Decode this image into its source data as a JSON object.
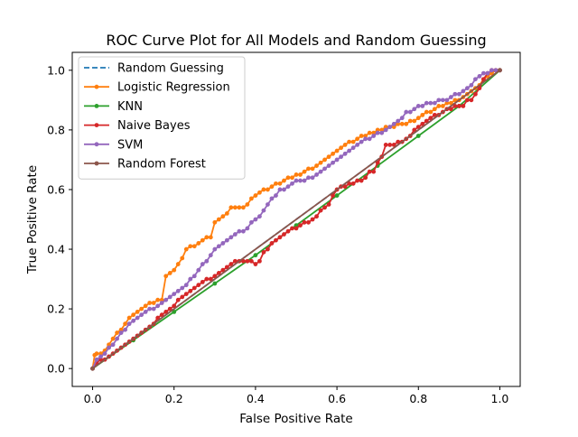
{
  "chart_data": {
    "type": "line",
    "title": "ROC Curve Plot for All Models and Random Guessing",
    "xlabel": "False Positive Rate",
    "ylabel": "True Positive Rate",
    "xlim": [
      -0.05,
      1.05
    ],
    "ylim": [
      -0.06,
      1.06
    ],
    "xticks": [
      "0.0",
      "0.2",
      "0.4",
      "0.6",
      "0.8",
      "1.0"
    ],
    "yticks": [
      "0.0",
      "0.2",
      "0.4",
      "0.6",
      "0.8",
      "1.0"
    ],
    "grid": false,
    "legend_position": "top-left",
    "series": [
      {
        "name": "Random Guessing",
        "color": "#1f77b4",
        "style": "dashed",
        "markers": false,
        "x": [
          0,
          1
        ],
        "y": [
          0,
          1
        ]
      },
      {
        "name": "Logistic Regression",
        "color": "#ff7f0e",
        "style": "solid",
        "markers": true,
        "x": [
          0.0,
          0.005,
          0.01,
          0.02,
          0.03,
          0.04,
          0.05,
          0.06,
          0.07,
          0.08,
          0.09,
          0.1,
          0.11,
          0.12,
          0.13,
          0.14,
          0.15,
          0.16,
          0.17,
          0.18,
          0.19,
          0.2,
          0.21,
          0.22,
          0.23,
          0.24,
          0.25,
          0.26,
          0.27,
          0.28,
          0.29,
          0.3,
          0.31,
          0.32,
          0.33,
          0.34,
          0.35,
          0.36,
          0.37,
          0.38,
          0.39,
          0.4,
          0.41,
          0.42,
          0.43,
          0.44,
          0.45,
          0.46,
          0.47,
          0.48,
          0.49,
          0.5,
          0.51,
          0.52,
          0.53,
          0.54,
          0.55,
          0.56,
          0.57,
          0.58,
          0.59,
          0.6,
          0.61,
          0.62,
          0.63,
          0.64,
          0.65,
          0.66,
          0.67,
          0.68,
          0.69,
          0.7,
          0.71,
          0.72,
          0.73,
          0.74,
          0.75,
          0.76,
          0.77,
          0.78,
          0.79,
          0.8,
          0.81,
          0.82,
          0.83,
          0.84,
          0.85,
          0.86,
          0.87,
          0.88,
          0.89,
          0.9,
          0.91,
          0.92,
          0.93,
          0.94,
          0.95,
          0.96,
          0.97,
          0.98,
          0.99,
          1.0
        ],
        "y": [
          0.0,
          0.045,
          0.05,
          0.05,
          0.06,
          0.08,
          0.1,
          0.12,
          0.13,
          0.15,
          0.17,
          0.18,
          0.19,
          0.2,
          0.21,
          0.22,
          0.22,
          0.23,
          0.23,
          0.31,
          0.32,
          0.33,
          0.35,
          0.37,
          0.4,
          0.41,
          0.41,
          0.42,
          0.43,
          0.44,
          0.44,
          0.49,
          0.5,
          0.51,
          0.52,
          0.54,
          0.54,
          0.54,
          0.54,
          0.55,
          0.57,
          0.58,
          0.59,
          0.6,
          0.6,
          0.61,
          0.62,
          0.62,
          0.63,
          0.64,
          0.64,
          0.65,
          0.65,
          0.66,
          0.67,
          0.67,
          0.68,
          0.69,
          0.7,
          0.71,
          0.72,
          0.73,
          0.74,
          0.75,
          0.76,
          0.76,
          0.77,
          0.78,
          0.78,
          0.79,
          0.79,
          0.8,
          0.8,
          0.81,
          0.81,
          0.81,
          0.82,
          0.82,
          0.82,
          0.83,
          0.83,
          0.84,
          0.85,
          0.86,
          0.86,
          0.87,
          0.88,
          0.88,
          0.89,
          0.89,
          0.9,
          0.9,
          0.91,
          0.92,
          0.93,
          0.94,
          0.95,
          0.97,
          0.98,
          0.99,
          1.0,
          1.0
        ]
      },
      {
        "name": "KNN",
        "color": "#2ca02c",
        "style": "solid",
        "markers": true,
        "x": [
          0.0,
          0.1,
          0.2,
          0.3,
          0.4,
          0.5,
          0.6,
          0.7,
          0.8,
          0.9,
          1.0
        ],
        "y": [
          0.0,
          0.095,
          0.19,
          0.285,
          0.38,
          0.48,
          0.58,
          0.68,
          0.78,
          0.88,
          1.0
        ]
      },
      {
        "name": "Naive Bayes",
        "color": "#d62728",
        "style": "solid",
        "markers": true,
        "x": [
          0.0,
          0.01,
          0.02,
          0.03,
          0.04,
          0.05,
          0.06,
          0.07,
          0.08,
          0.09,
          0.1,
          0.11,
          0.12,
          0.13,
          0.14,
          0.15,
          0.16,
          0.17,
          0.18,
          0.19,
          0.2,
          0.21,
          0.22,
          0.23,
          0.24,
          0.25,
          0.26,
          0.27,
          0.28,
          0.29,
          0.3,
          0.31,
          0.32,
          0.33,
          0.34,
          0.35,
          0.36,
          0.37,
          0.38,
          0.39,
          0.4,
          0.41,
          0.42,
          0.43,
          0.44,
          0.45,
          0.46,
          0.47,
          0.48,
          0.49,
          0.5,
          0.51,
          0.52,
          0.53,
          0.54,
          0.55,
          0.56,
          0.57,
          0.58,
          0.59,
          0.6,
          0.61,
          0.62,
          0.63,
          0.64,
          0.65,
          0.66,
          0.67,
          0.68,
          0.69,
          0.7,
          0.71,
          0.72,
          0.73,
          0.74,
          0.75,
          0.76,
          0.77,
          0.78,
          0.79,
          0.8,
          0.81,
          0.82,
          0.83,
          0.84,
          0.85,
          0.86,
          0.87,
          0.88,
          0.89,
          0.9,
          0.91,
          0.92,
          0.93,
          0.94,
          0.95,
          0.96,
          0.97,
          0.98,
          0.99,
          1.0
        ],
        "y": [
          0.0,
          0.02,
          0.03,
          0.03,
          0.04,
          0.05,
          0.06,
          0.07,
          0.08,
          0.09,
          0.1,
          0.11,
          0.12,
          0.13,
          0.14,
          0.15,
          0.17,
          0.18,
          0.19,
          0.2,
          0.21,
          0.23,
          0.24,
          0.25,
          0.26,
          0.27,
          0.28,
          0.29,
          0.3,
          0.3,
          0.31,
          0.32,
          0.33,
          0.34,
          0.35,
          0.36,
          0.36,
          0.36,
          0.36,
          0.36,
          0.35,
          0.36,
          0.39,
          0.4,
          0.42,
          0.43,
          0.44,
          0.45,
          0.46,
          0.47,
          0.47,
          0.48,
          0.49,
          0.49,
          0.5,
          0.51,
          0.53,
          0.54,
          0.55,
          0.58,
          0.6,
          0.61,
          0.61,
          0.62,
          0.62,
          0.63,
          0.63,
          0.64,
          0.66,
          0.66,
          0.69,
          0.71,
          0.75,
          0.75,
          0.75,
          0.76,
          0.76,
          0.77,
          0.78,
          0.8,
          0.81,
          0.82,
          0.83,
          0.84,
          0.85,
          0.85,
          0.86,
          0.87,
          0.87,
          0.88,
          0.88,
          0.88,
          0.9,
          0.9,
          0.92,
          0.94,
          0.97,
          0.99,
          1.0,
          1.0,
          1.0
        ]
      },
      {
        "name": "SVM",
        "color": "#9467bd",
        "style": "solid",
        "markers": true,
        "x": [
          0.0,
          0.01,
          0.02,
          0.03,
          0.04,
          0.05,
          0.06,
          0.07,
          0.08,
          0.09,
          0.1,
          0.11,
          0.12,
          0.13,
          0.14,
          0.15,
          0.16,
          0.17,
          0.18,
          0.19,
          0.2,
          0.21,
          0.22,
          0.23,
          0.24,
          0.25,
          0.26,
          0.27,
          0.28,
          0.29,
          0.3,
          0.31,
          0.32,
          0.33,
          0.34,
          0.35,
          0.36,
          0.37,
          0.38,
          0.39,
          0.4,
          0.41,
          0.42,
          0.43,
          0.44,
          0.45,
          0.46,
          0.47,
          0.48,
          0.49,
          0.5,
          0.51,
          0.52,
          0.53,
          0.54,
          0.55,
          0.56,
          0.57,
          0.58,
          0.59,
          0.6,
          0.61,
          0.62,
          0.63,
          0.64,
          0.65,
          0.66,
          0.67,
          0.68,
          0.69,
          0.7,
          0.71,
          0.72,
          0.73,
          0.74,
          0.75,
          0.76,
          0.77,
          0.78,
          0.79,
          0.8,
          0.81,
          0.82,
          0.83,
          0.84,
          0.85,
          0.86,
          0.87,
          0.88,
          0.89,
          0.9,
          0.91,
          0.92,
          0.93,
          0.94,
          0.95,
          0.96,
          0.97,
          0.98,
          0.99,
          1.0
        ],
        "y": [
          0.0,
          0.03,
          0.04,
          0.05,
          0.07,
          0.08,
          0.1,
          0.12,
          0.13,
          0.15,
          0.16,
          0.17,
          0.18,
          0.19,
          0.2,
          0.2,
          0.21,
          0.22,
          0.23,
          0.24,
          0.25,
          0.26,
          0.27,
          0.28,
          0.3,
          0.31,
          0.33,
          0.35,
          0.36,
          0.38,
          0.4,
          0.41,
          0.42,
          0.43,
          0.44,
          0.45,
          0.46,
          0.46,
          0.47,
          0.49,
          0.5,
          0.51,
          0.53,
          0.55,
          0.57,
          0.58,
          0.6,
          0.6,
          0.61,
          0.62,
          0.63,
          0.63,
          0.63,
          0.64,
          0.64,
          0.65,
          0.66,
          0.67,
          0.68,
          0.69,
          0.7,
          0.71,
          0.72,
          0.73,
          0.74,
          0.75,
          0.76,
          0.77,
          0.77,
          0.78,
          0.79,
          0.79,
          0.8,
          0.81,
          0.82,
          0.83,
          0.84,
          0.86,
          0.86,
          0.87,
          0.88,
          0.88,
          0.89,
          0.89,
          0.89,
          0.9,
          0.9,
          0.9,
          0.91,
          0.92,
          0.92,
          0.93,
          0.94,
          0.95,
          0.97,
          0.98,
          0.99,
          0.99,
          1.0,
          1.0,
          1.0
        ]
      },
      {
        "name": "Random Forest",
        "color": "#8c564b",
        "style": "solid",
        "markers": true,
        "x": [
          0,
          1
        ],
        "y": [
          0,
          1
        ]
      }
    ]
  }
}
